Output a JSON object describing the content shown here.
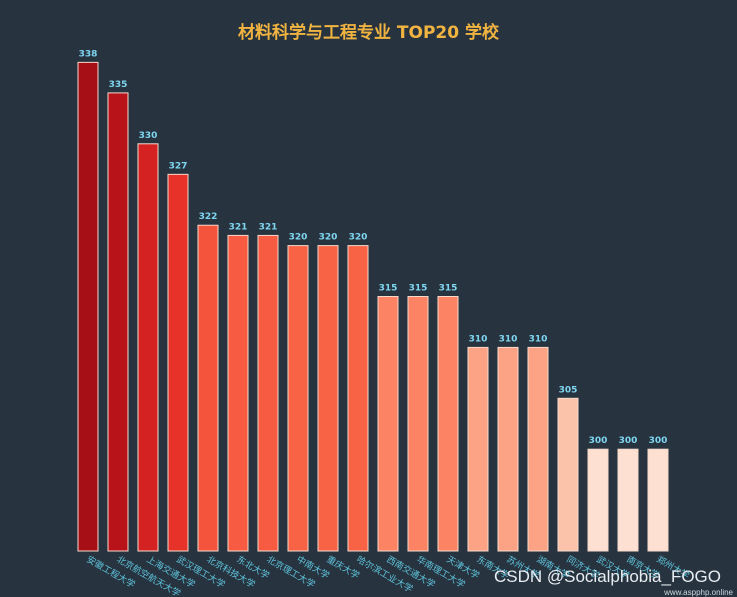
{
  "title": "材料科学与工程专业 TOP20 学校",
  "colors": {
    "background": "#273440",
    "title": "#f2b441",
    "value_label": "#7fd6f0",
    "category_label": "#5fc4dc",
    "bar_border": "#f7d8cc",
    "gradient": [
      "#a50f15",
      "#cb181d",
      "#ef3b2c",
      "#fb6a4a",
      "#fc9272",
      "#fcbba1",
      "#fee0d2"
    ]
  },
  "chart_data": {
    "type": "bar",
    "title": "材料科学与工程专业 TOP20 学校",
    "xlabel": "",
    "ylabel": "",
    "categories": [
      "安徽工程大学",
      "北京航空航天大学",
      "上海交通大学",
      "武汉理工大学",
      "北京科技大学",
      "东北大学",
      "北京理工大学",
      "中南大学",
      "重庆大学",
      "哈尔滨工业大学",
      "西南交通大学",
      "华南理工大学",
      "天津大学",
      "东南大学",
      "苏州大学",
      "湖南大学",
      "同济大学",
      "武汉大学",
      "南京大学",
      "郑州大学"
    ],
    "values": [
      338,
      335,
      330,
      327,
      322,
      321,
      321,
      320,
      320,
      320,
      315,
      315,
      315,
      310,
      310,
      310,
      305,
      300,
      300,
      300
    ],
    "ylim": [
      290,
      340
    ],
    "grid": false,
    "legend": "none"
  },
  "watermark": {
    "text": "CSDN @Socialphobia_FOGO",
    "url": "www.aspphp.online"
  }
}
